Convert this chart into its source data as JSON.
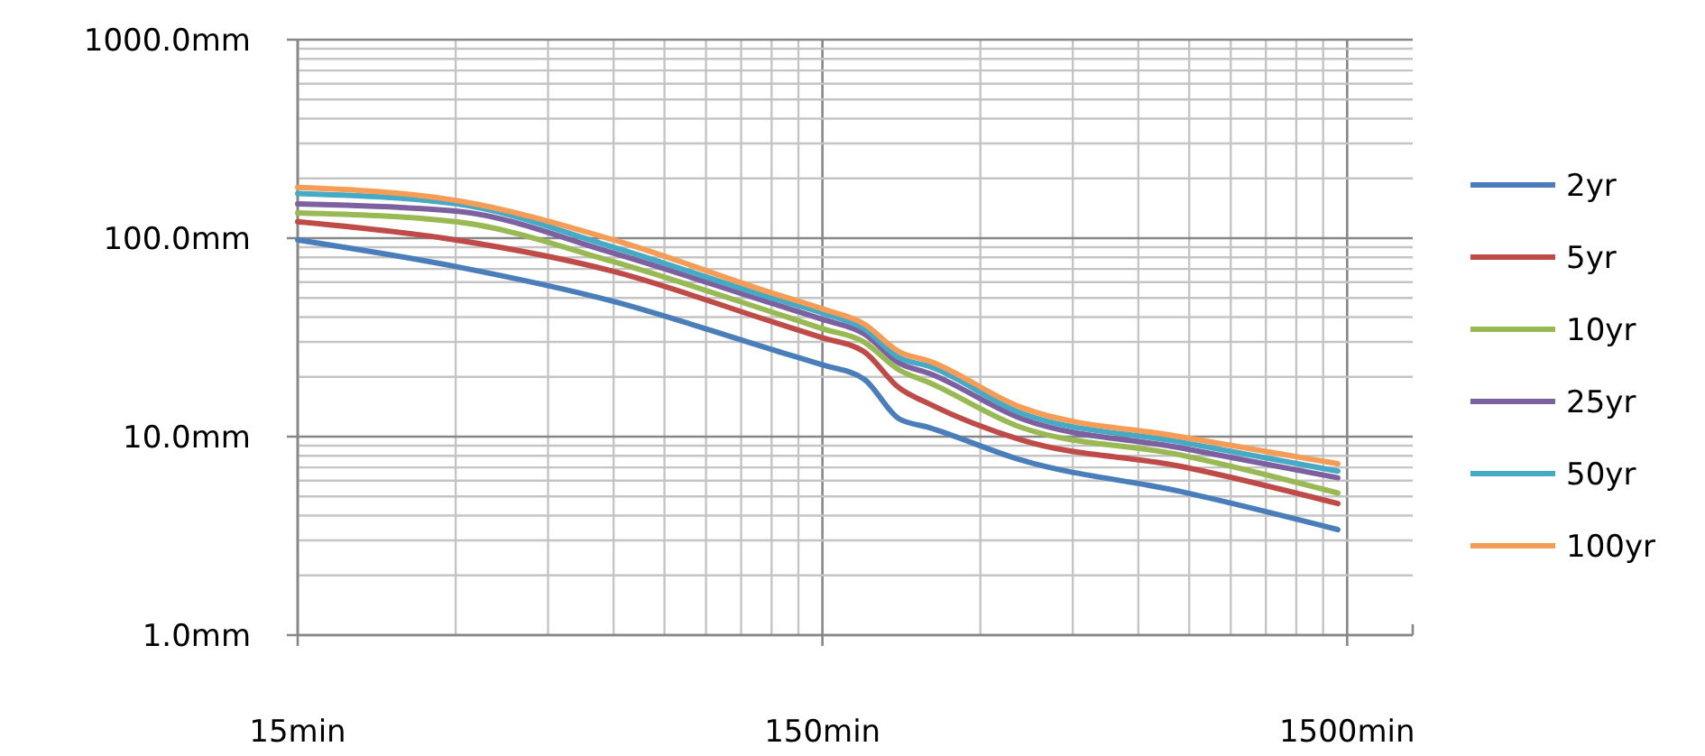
{
  "chart_data": {
    "type": "line",
    "log": "xy",
    "grid": true,
    "legend": "right",
    "marker": "none",
    "line_style": "solid",
    "x": [
      15,
      30,
      60,
      120,
      150,
      180,
      210,
      240,
      360,
      720,
      1440
    ],
    "xlim": [
      15,
      2000
    ],
    "xticks": [
      {
        "value": 15,
        "label": "15min"
      },
      {
        "value": 150,
        "label": "150min"
      },
      {
        "value": 1500,
        "label": "1500min"
      }
    ],
    "ylim": [
      1,
      1000
    ],
    "yticks": [
      {
        "value": 1,
        "label": "1.0mm"
      },
      {
        "value": 10,
        "label": "10.0mm"
      },
      {
        "value": 100,
        "label": "100.0mm"
      },
      {
        "value": 1000,
        "label": "1000.0mm"
      }
    ],
    "series": [
      {
        "name": "2yr",
        "color": "#4a7ebb",
        "values": [
          98,
          72,
          48,
          27.5,
          23,
          19.5,
          12.3,
          11.1,
          7.6,
          5.3,
          3.4
        ]
      },
      {
        "name": "5yr",
        "color": "#be4b48",
        "values": [
          121,
          98,
          68,
          38,
          31.5,
          26.8,
          17.6,
          14.6,
          9.6,
          7.1,
          4.6
        ]
      },
      {
        "name": "10yr",
        "color": "#98b954",
        "values": [
          134,
          121,
          76,
          42.5,
          35,
          30,
          21.7,
          18.7,
          11.1,
          8.1,
          5.2
        ]
      },
      {
        "name": "25yr",
        "color": "#7d60a0",
        "values": [
          149,
          137,
          84,
          47,
          39,
          33,
          23.5,
          20.8,
          12.3,
          8.8,
          6.2
        ]
      },
      {
        "name": "50yr",
        "color": "#46aac5",
        "values": [
          168,
          149,
          90,
          50,
          42,
          35,
          25,
          22.6,
          13.1,
          9.4,
          6.7
        ]
      },
      {
        "name": "100yr",
        "color": "#f59d56",
        "values": [
          180,
          155,
          98,
          53,
          44,
          37,
          26.8,
          24,
          14,
          10,
          7.3
        ]
      }
    ]
  }
}
